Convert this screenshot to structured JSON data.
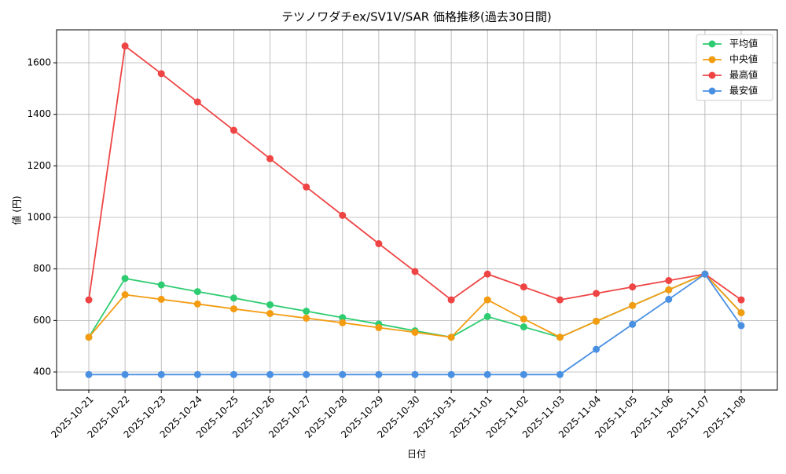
{
  "chart_data": {
    "type": "line",
    "title": "テツノワダチex/SV1V/SAR 価格推移(過去30日間)",
    "x_label": "日付",
    "y_label": "値 (円)",
    "categories": [
      "2025-10-21",
      "2025-10-22",
      "2025-10-23",
      "2025-10-24",
      "2025-10-25",
      "2025-10-26",
      "2025-10-27",
      "2025-10-28",
      "2025-10-29",
      "2025-10-30",
      "2025-10-31",
      "2025-11-01",
      "2025-11-02",
      "2025-11-03",
      "2025-11-04",
      "2025-11-05",
      "2025-11-06",
      "2025-11-07",
      "2025-11-08"
    ],
    "series": [
      {
        "name": "平均値",
        "color": "#2ecc71",
        "values": [
          535,
          763,
          738,
          712,
          687,
          661,
          636,
          611,
          586,
          560,
          535,
          615,
          575,
          535,
          597,
          658,
          719,
          780,
          630
        ]
      },
      {
        "name": "中央値",
        "color": "#f39c12",
        "values": [
          535,
          700,
          682,
          664,
          645,
          627,
          609,
          591,
          572,
          554,
          535,
          680,
          606,
          535,
          597,
          658,
          719,
          780,
          630
        ]
      },
      {
        "name": "最高値",
        "color": "#ef4444",
        "values": [
          680,
          1665,
          1558,
          1448,
          1338,
          1228,
          1118,
          1008,
          898,
          790,
          680,
          780,
          730,
          680,
          705,
          730,
          755,
          780,
          680
        ]
      },
      {
        "name": "最安値",
        "color": "#4a90e2",
        "values": [
          390,
          390,
          390,
          390,
          390,
          390,
          390,
          390,
          390,
          390,
          390,
          390,
          390,
          390,
          488,
          585,
          682,
          780,
          580
        ]
      }
    ],
    "ylim": [
      330,
      1728
    ],
    "yticks": [
      400,
      600,
      800,
      1000,
      1200,
      1400,
      1600
    ],
    "grid": true,
    "legend": "upper right"
  }
}
